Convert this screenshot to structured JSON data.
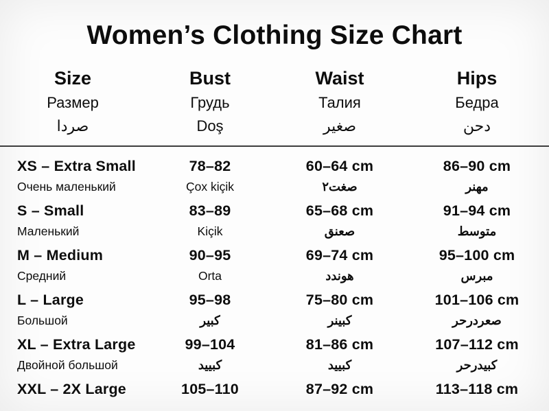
{
  "page": {
    "title": "Women’s Clothing Size Chart"
  },
  "colors": {
    "text": "#0d0d0d",
    "background": "#fdfdfd",
    "divider": "#3d3d3d"
  },
  "table": {
    "columns": [
      {
        "en": "Size",
        "ru": "Размер",
        "third": "صردا"
      },
      {
        "en": "Bust",
        "ru": "Грудь",
        "third": "Doş"
      },
      {
        "en": "Waist",
        "ru": "Талия",
        "third": "صغير"
      },
      {
        "en": "Hips",
        "ru": "Бедра",
        "third": "دحن"
      }
    ],
    "rows": [
      {
        "size": "XS – Extra Small",
        "size_sub": "Очень маленький",
        "bust": "78–82",
        "bust_sub": "Çox kiçik",
        "waist": "60–64 cm",
        "waist_sub": "صغت٢",
        "hips": "86–90 cm",
        "hips_sub": "مهنر"
      },
      {
        "size": "S – Small",
        "size_sub": "Маленький",
        "bust": "83–89",
        "bust_sub": "Kiçik",
        "waist": "65–68 cm",
        "waist_sub": "صعنق",
        "hips": "91–94 cm",
        "hips_sub": "متوسط"
      },
      {
        "size": "M – Medium",
        "size_sub": "Средний",
        "bust": "90–95",
        "bust_sub": "Orta",
        "waist": "69–74 cm",
        "waist_sub": "هوندد",
        "hips": "95–100 cm",
        "hips_sub": "مبرس"
      },
      {
        "size": "L – Large",
        "size_sub": "Большой",
        "bust": "95–98",
        "bust_sub": "كبير",
        "waist": "75–80 cm",
        "waist_sub": "كبينر",
        "hips": "101–106 cm",
        "hips_sub": "صعردرحر"
      },
      {
        "size": "XL – Extra Large",
        "size_sub": "Двойной большой",
        "bust": "99–104",
        "bust_sub": "كبييد",
        "waist": "81–86 cm",
        "waist_sub": "كبييد",
        "hips": "107–112 cm",
        "hips_sub": "كبيدرحر"
      },
      {
        "size": "XXL – 2X Large",
        "size_sub": "",
        "bust": "105–110",
        "bust_sub": "",
        "waist": "87–92 cm",
        "waist_sub": "",
        "hips": "113–118 cm",
        "hips_sub": ""
      }
    ]
  },
  "chart_data": {
    "type": "table",
    "title": "Women’s Clothing Size Chart",
    "columns": [
      "Size",
      "Bust",
      "Waist (cm)",
      "Hips (cm)"
    ],
    "rows": [
      [
        "XS – Extra Small",
        "78–82",
        "60–64",
        "86–90"
      ],
      [
        "S – Small",
        "83–89",
        "65–68",
        "91–94"
      ],
      [
        "M – Medium",
        "90–95",
        "69–74",
        "95–100"
      ],
      [
        "L – Large",
        "95–98",
        "75–80",
        "101–106"
      ],
      [
        "XL – Extra Large",
        "99–104",
        "81–86",
        "107–112"
      ],
      [
        "XXL – 2X Large",
        "105–110",
        "87–92",
        "113–118"
      ]
    ]
  }
}
